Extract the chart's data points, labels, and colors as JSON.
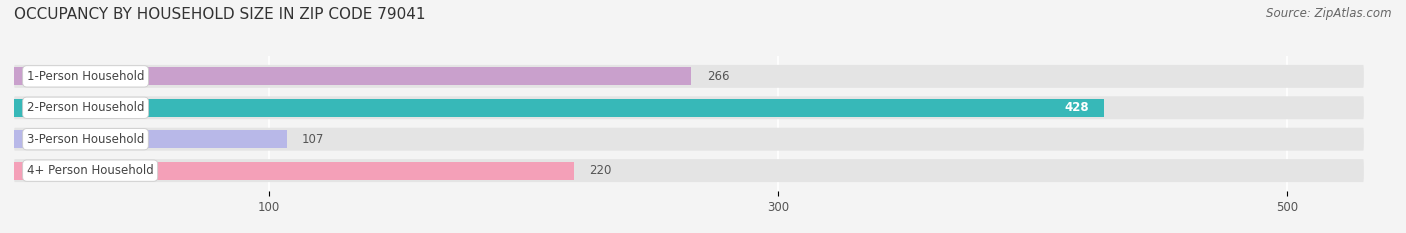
{
  "title": "OCCUPANCY BY HOUSEHOLD SIZE IN ZIP CODE 79041",
  "source": "Source: ZipAtlas.com",
  "categories": [
    "1-Person Household",
    "2-Person Household",
    "3-Person Household",
    "4+ Person Household"
  ],
  "values": [
    266,
    428,
    107,
    220
  ],
  "bar_colors": [
    "#c9a0cc",
    "#37b8b8",
    "#b8b8e8",
    "#f4a0b8"
  ],
  "label_colors": [
    "#555555",
    "#ffffff",
    "#555555",
    "#555555"
  ],
  "xlim": [
    0,
    530
  ],
  "xmin": 0,
  "xticks": [
    100,
    300,
    500
  ],
  "background_color": "#f4f4f4",
  "bar_background_color": "#e4e4e4",
  "bar_height": 0.58,
  "title_fontsize": 11,
  "source_fontsize": 8.5,
  "label_fontsize": 8.5,
  "value_fontsize": 8.5,
  "tick_fontsize": 8.5
}
